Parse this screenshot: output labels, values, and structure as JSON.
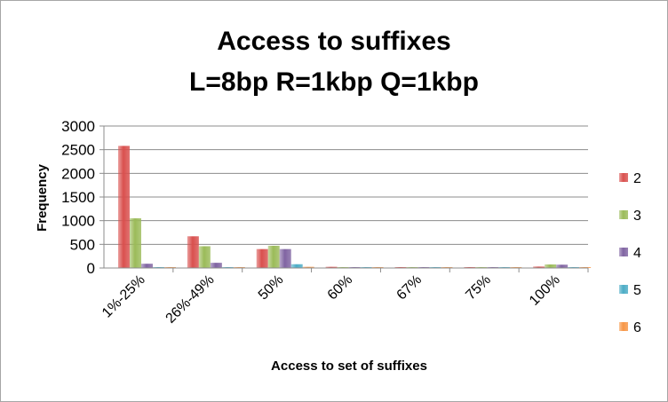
{
  "chart_data": {
    "type": "bar",
    "title": [
      "Access to suffixes",
      "L=8bp R=1kbp Q=1kbp"
    ],
    "xlabel": "Access to set of suffixes",
    "ylabel": "Frequency",
    "categories": [
      "1%-25%",
      "26%-49%",
      "50%",
      "60%",
      "67%",
      "75%",
      "100%"
    ],
    "ylim": [
      0,
      3000
    ],
    "yticks": [
      0,
      500,
      1000,
      1500,
      2000,
      2500,
      3000
    ],
    "grid": true,
    "legend_position": "right",
    "series": [
      {
        "name": "2",
        "color": "#d9504e",
        "values": [
          2580,
          670,
          400,
          25,
          12,
          15,
          30
        ]
      },
      {
        "name": "3",
        "color": "#9bbb59",
        "values": [
          1050,
          460,
          470,
          8,
          5,
          4,
          75
        ]
      },
      {
        "name": "4",
        "color": "#8064a2",
        "values": [
          90,
          110,
          400,
          3,
          3,
          2,
          70
        ]
      },
      {
        "name": "5",
        "color": "#4bacc6",
        "values": [
          10,
          15,
          80,
          2,
          2,
          1,
          5
        ]
      },
      {
        "name": "6",
        "color": "#f79646",
        "values": [
          5,
          10,
          25,
          1,
          1,
          1,
          8
        ]
      }
    ]
  }
}
